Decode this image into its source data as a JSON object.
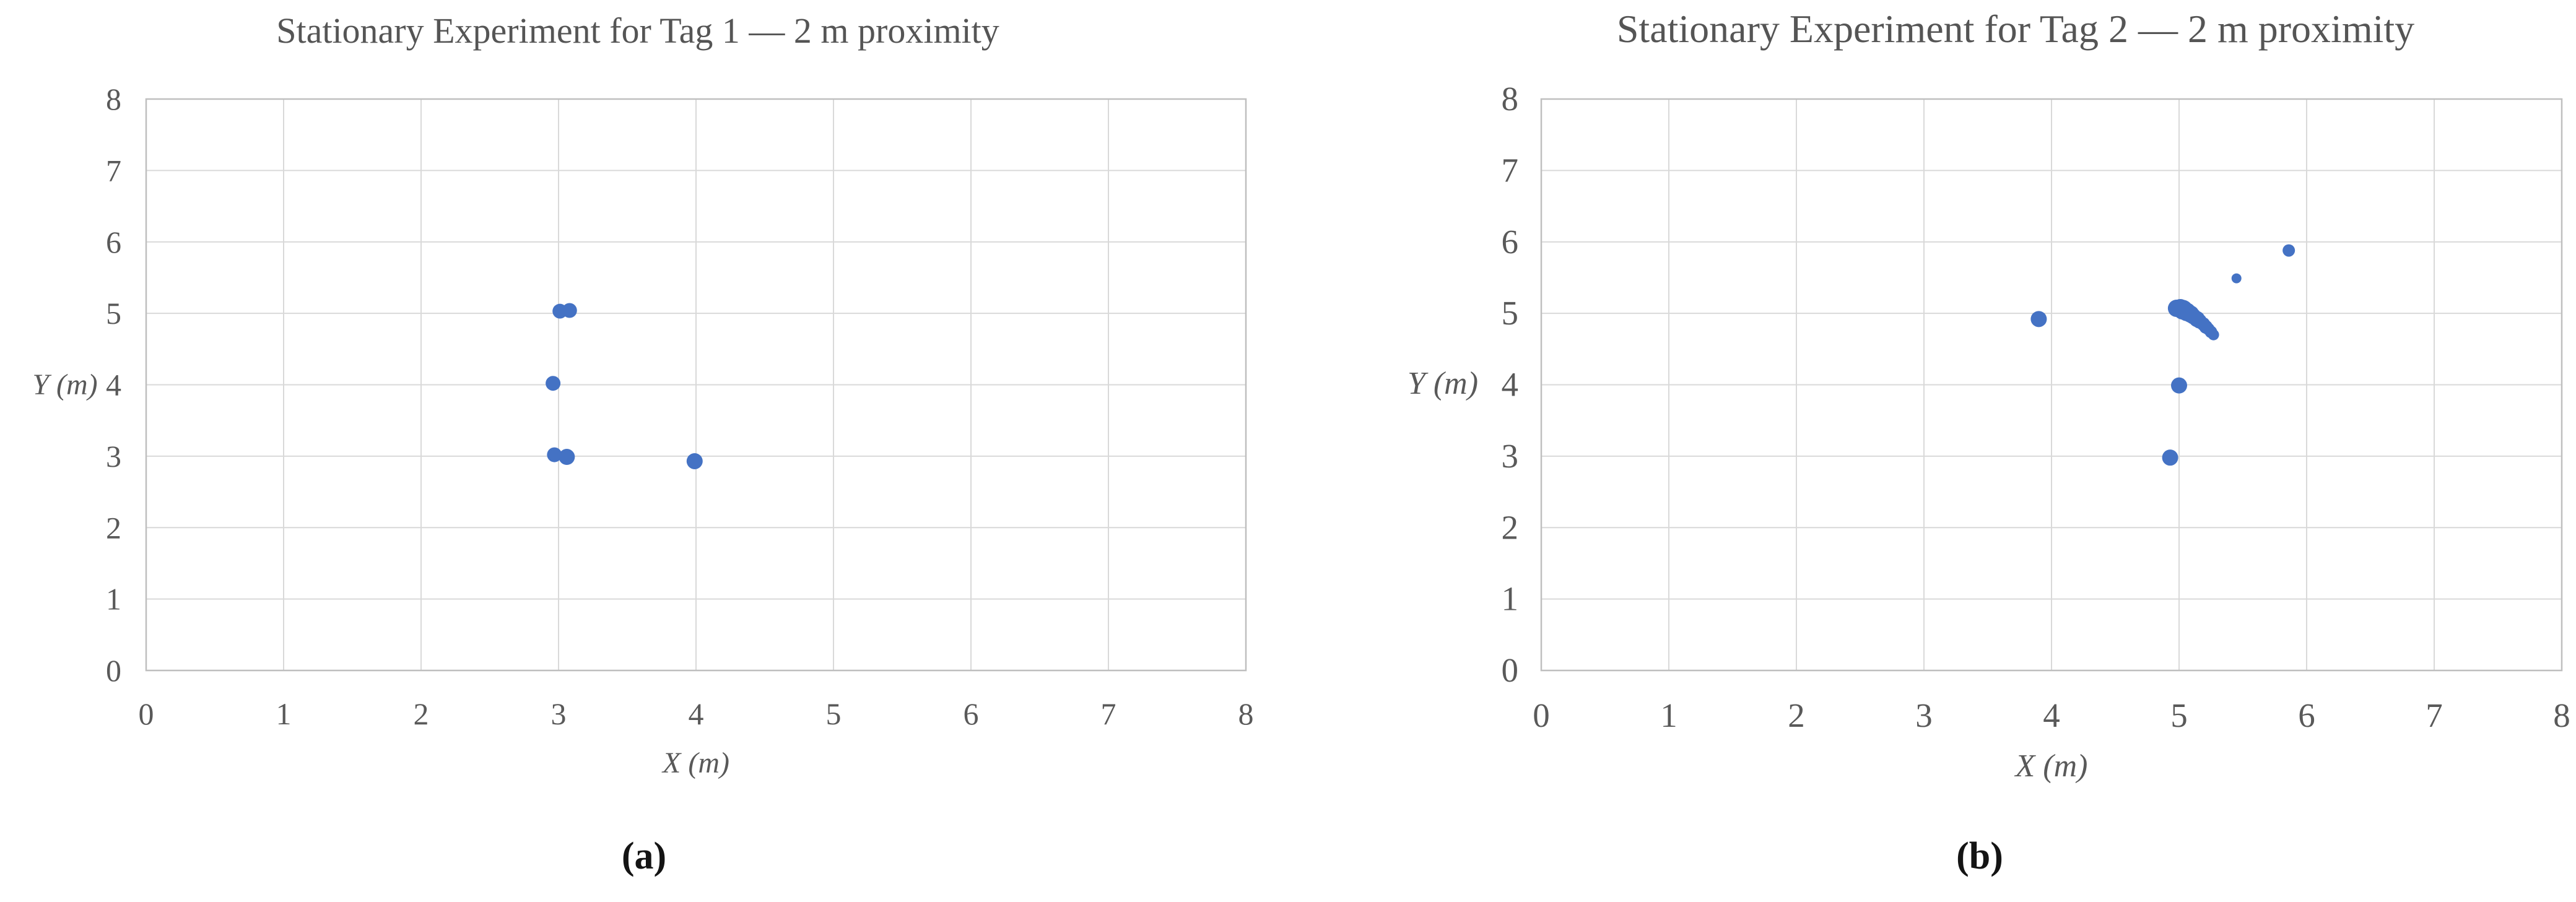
{
  "figure": {
    "description": "Two side-by-side scatter plots of stationary UWB tag position estimates",
    "panel_captions": [
      "(a)",
      "(b)"
    ]
  },
  "colors": {
    "marker": "#4472C4",
    "gridline": "#D9D9D9",
    "plot_border": "#BFBFBF",
    "tick_text": "#595959",
    "axis_label_text": "#595959",
    "title_text": "#555555",
    "caption_text": "#141414",
    "background": "#FFFFFF"
  },
  "chart_data": [
    {
      "type": "scatter",
      "title": "Stationary Experiment for Tag 1 — 2 m proximity",
      "xlabel": "X (m)",
      "ylabel": "Y (m)",
      "xlim": [
        0,
        8
      ],
      "ylim": [
        0,
        8
      ],
      "xticks": [
        0,
        1,
        2,
        3,
        4,
        5,
        6,
        7,
        8
      ],
      "yticks": [
        0,
        1,
        2,
        3,
        4,
        5,
        6,
        7,
        8
      ],
      "grid": true,
      "legend": "none",
      "caption": "(a)",
      "series": [
        {
          "name": "Tag 1 estimated positions",
          "points": [
            [
              3.01,
              5.03,
              12
            ],
            [
              3.08,
              5.04,
              12
            ],
            [
              2.96,
              4.02,
              12
            ],
            [
              2.97,
              3.02,
              12
            ],
            [
              3.06,
              2.99,
              13
            ],
            [
              3.99,
              2.93,
              13
            ]
          ]
        }
      ]
    },
    {
      "type": "scatter",
      "title": "Stationary Experiment for Tag 2 — 2 m proximity",
      "xlabel": "X (m)",
      "ylabel": "Y (m)",
      "xlim": [
        0,
        8
      ],
      "ylim": [
        0,
        8
      ],
      "xticks": [
        0,
        1,
        2,
        3,
        4,
        5,
        6,
        7,
        8
      ],
      "yticks": [
        0,
        1,
        2,
        3,
        4,
        5,
        6,
        7,
        8
      ],
      "grid": true,
      "legend": "none",
      "caption": "(b)",
      "series": [
        {
          "name": "Tag 2 estimated positions",
          "points": [
            [
              3.9,
              4.92,
              13
            ],
            [
              4.98,
              5.07,
              14
            ],
            [
              5.01,
              5.07,
              15
            ],
            [
              5.03,
              5.05,
              16
            ],
            [
              5.06,
              5.02,
              15
            ],
            [
              5.09,
              4.99,
              14
            ],
            [
              5.11,
              4.96,
              13
            ],
            [
              5.14,
              4.92,
              13
            ],
            [
              5.16,
              4.89,
              12
            ],
            [
              5.19,
              4.85,
              11
            ],
            [
              5.21,
              4.81,
              11
            ],
            [
              5.23,
              4.78,
              10
            ],
            [
              5.25,
              4.74,
              10
            ],
            [
              5.27,
              4.7,
              9
            ],
            [
              5.45,
              5.49,
              8
            ],
            [
              5.86,
              5.88,
              10
            ],
            [
              5.0,
              3.99,
              13
            ],
            [
              4.93,
              2.98,
              13
            ]
          ]
        }
      ]
    }
  ]
}
